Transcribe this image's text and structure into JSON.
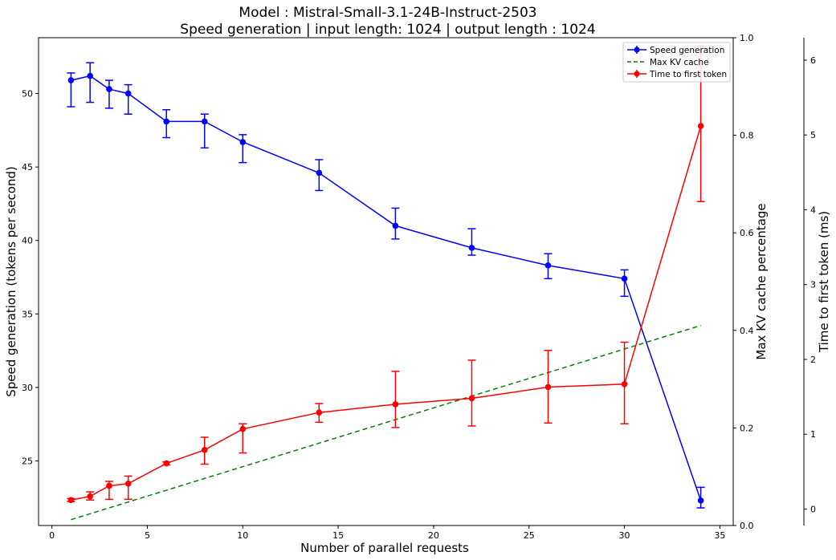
{
  "chart_data": {
    "type": "line",
    "title": "Model : Mistral-Small-3.1-24B-Instruct-2503",
    "subtitle": "Speed generation | input length: 1024 | output length : 1024",
    "xlabel": "Number of parallel requests",
    "ylabel_left": "Speed generation (tokens per second)",
    "ylabel_right1": "Max KV cache percentage",
    "ylabel_right2": "Time to first token (ms)",
    "xlim": [
      -0.7,
      35.7
    ],
    "x_ticks": [
      0,
      5,
      10,
      15,
      20,
      25,
      30,
      35
    ],
    "ylim_left": [
      20.6,
      53.8
    ],
    "y_ticks_left": [
      25,
      30,
      35,
      40,
      45,
      50
    ],
    "ylim_right1": [
      0.0,
      1.0
    ],
    "y_ticks_right1": [
      0.0,
      0.2,
      0.4,
      0.6,
      0.8,
      1.0
    ],
    "ylim_right2": [
      -0.22,
      6.3
    ],
    "y_ticks_right2": [
      0,
      1,
      2,
      3,
      4,
      5,
      6
    ],
    "legend_position": "top-right",
    "grid": false,
    "series": [
      {
        "name": "Speed generation",
        "axis": "left",
        "color": "#0000ff",
        "style": "solid",
        "marker": "circle",
        "errorbars": true,
        "x": [
          1,
          2,
          3,
          4,
          6,
          8,
          10,
          14,
          18,
          22,
          26,
          30,
          34
        ],
        "y": [
          50.9,
          51.2,
          50.3,
          50.0,
          48.1,
          48.1,
          46.7,
          44.6,
          41.0,
          39.5,
          38.3,
          37.4,
          22.3
        ],
        "y_low": [
          49.1,
          49.4,
          49.0,
          48.6,
          47.0,
          46.3,
          45.3,
          43.4,
          40.1,
          39.0,
          37.4,
          36.2,
          21.8
        ],
        "y_high": [
          51.4,
          52.1,
          50.9,
          50.6,
          48.9,
          48.6,
          47.2,
          45.5,
          42.2,
          40.8,
          39.1,
          38.0,
          23.2
        ]
      },
      {
        "name": "Max KV cache",
        "axis": "right1",
        "color": "#008000",
        "style": "dashed",
        "marker": "none",
        "errorbars": false,
        "x": [
          1,
          34
        ],
        "y": [
          0.012,
          0.41
        ]
      },
      {
        "name": "Time to first token",
        "axis": "right2",
        "color": "#ff0000",
        "style": "solid",
        "marker": "circle",
        "errorbars": true,
        "x": [
          1,
          2,
          3,
          4,
          6,
          8,
          10,
          14,
          18,
          22,
          26,
          30,
          34
        ],
        "y": [
          0.12,
          0.17,
          0.31,
          0.34,
          0.61,
          0.79,
          1.07,
          1.29,
          1.4,
          1.48,
          1.63,
          1.67,
          5.12
        ],
        "y_low": [
          0.1,
          0.12,
          0.13,
          0.13,
          0.59,
          0.6,
          0.75,
          1.16,
          1.09,
          1.11,
          1.15,
          1.14,
          4.11
        ],
        "y_high": [
          0.14,
          0.23,
          0.37,
          0.44,
          0.63,
          0.96,
          1.14,
          1.41,
          1.84,
          1.99,
          2.12,
          2.23,
          6.19
        ]
      }
    ]
  }
}
